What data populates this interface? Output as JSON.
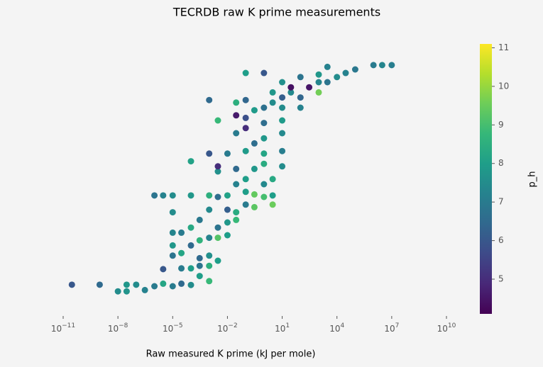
{
  "chart_data": {
    "type": "scatter",
    "title": "TECRDB raw K prime measurements",
    "x_label": "Raw measured K prime (kJ per mole)",
    "colorbar_label": "p_h",
    "xscale": "log",
    "xlim": [
      1e-11,
      10000000000.0
    ],
    "xticks": [
      {
        "value": 1e-11,
        "label": "10^−11"
      },
      {
        "value": 1e-08,
        "label": "10^−8"
      },
      {
        "value": 1e-05,
        "label": "10^−5"
      },
      {
        "value": 0.01,
        "label": "10^−2"
      },
      {
        "value": 10,
        "label": "10^1"
      },
      {
        "value": 10000.0,
        "label": "10^4"
      },
      {
        "value": 10000000.0,
        "label": "10^7"
      },
      {
        "value": 10000000000.0,
        "label": "10^10"
      }
    ],
    "ylim": [
      0,
      100
    ],
    "colormap": "viridis",
    "clim": [
      4.1,
      11.1
    ],
    "cticks": [
      5,
      6,
      7,
      8,
      9,
      10,
      11
    ],
    "series": [
      {
        "x": [
          3e-11,
          1e-09,
          1e-08,
          3e-08,
          3e-08,
          1e-07,
          3e-07,
          1e-06,
          3e-06,
          1e-05,
          3e-05,
          0.0001,
          0.001,
          0.0003,
          3e-06,
          3e-05,
          0.0001,
          0.0003,
          0.001,
          0.001,
          0.003,
          0.0003,
          1e-05,
          3e-05,
          1e-05,
          0.0001,
          0.0003,
          0.001,
          0.003,
          0.01,
          3e-05,
          0.0001,
          0.003,
          0.01,
          0.03,
          1e-05,
          1e-05,
          0.0003,
          0.001,
          0.01,
          0.03,
          0.1,
          0.3,
          0.003,
          0.1,
          1,
          3,
          1e-06,
          3e-06,
          1e-05,
          0.0001,
          0.001,
          0.01,
          0.3,
          3,
          0.03,
          0.1,
          1,
          3,
          0.003,
          0.03,
          0.3,
          1,
          10,
          0.003,
          0.01,
          0.1,
          1,
          10,
          0.001,
          0.3,
          1,
          10,
          0.03,
          0.1,
          1,
          10,
          0.003,
          0.1,
          10,
          100,
          1,
          100,
          30,
          3,
          1000,
          300,
          1000,
          3000,
          10000,
          1000,
          30000,
          100000,
          1000000,
          3000000,
          10000000,
          0.1,
          1,
          3000,
          100,
          10,
          30,
          10,
          3,
          0.3,
          0.1,
          0.03,
          0.001,
          0.03,
          0.0001
        ],
        "y": [
          10.6,
          10.6,
          8,
          8,
          10.6,
          10.6,
          8.5,
          10,
          11,
          10,
          11,
          10.5,
          12,
          14,
          16.7,
          17,
          17,
          18,
          18,
          22,
          20,
          21,
          22,
          23,
          26,
          26,
          28,
          29,
          29,
          30,
          31,
          33,
          33,
          35,
          36,
          31,
          39,
          36,
          40,
          40,
          39,
          42,
          41,
          45,
          47,
          45,
          42,
          45.6,
          45.6,
          45.6,
          45.6,
          45.6,
          45.6,
          46,
          45.6,
          50,
          52,
          50,
          52,
          55,
          56,
          56,
          58,
          57,
          57,
          62,
          63,
          62,
          63,
          62,
          66,
          68,
          70,
          70,
          72,
          74,
          75,
          75,
          76,
          80,
          80,
          80,
          84,
          86,
          86,
          86,
          88,
          90,
          90,
          92,
          93,
          93.6,
          95,
          96.7,
          96.7,
          96.7,
          93.6,
          93.6,
          96,
          92,
          90,
          88,
          84,
          82,
          79,
          83,
          82,
          83,
          77,
          59
        ],
        "c": [
          6.0,
          6.5,
          7.5,
          7.7,
          7.8,
          7.5,
          7.2,
          7.0,
          8.2,
          7.0,
          6.5,
          7.5,
          8.8,
          8.0,
          6.0,
          7.0,
          8.0,
          6.8,
          8.5,
          7.6,
          8.0,
          6.5,
          6.8,
          8.2,
          7.8,
          6.5,
          8.6,
          7.2,
          9.2,
          8.0,
          7.0,
          8.3,
          6.8,
          7.8,
          8.8,
          7.3,
          7.5,
          6.9,
          7.4,
          6.2,
          8.4,
          7.0,
          9.3,
          6.6,
          8.0,
          9.0,
          9.5,
          6.8,
          7.2,
          7.5,
          7.8,
          8.5,
          8.1,
          9.4,
          8.0,
          7.2,
          8.0,
          7.4,
          8.3,
          7.6,
          6.5,
          7.8,
          8.4,
          7.5,
          5.0,
          7.0,
          7.9,
          8.2,
          7.1,
          6.0,
          6.6,
          7.8,
          7.4,
          7.0,
          5.0,
          6.6,
          7.9,
          8.8,
          5.8,
          7.5,
          7.2,
          6.7,
          6.4,
          7.4,
          7.8,
          9.6,
          4.5,
          7.3,
          6.8,
          7.5,
          7.8,
          7.2,
          6.9,
          7.0,
          7.3,
          7.1,
          8.0,
          6.0,
          7.2,
          6.8,
          7.6,
          4.4,
          6.2,
          7.5,
          7.9,
          6.4,
          8.5,
          6.5,
          4.6,
          8.1
        ]
      }
    ]
  }
}
